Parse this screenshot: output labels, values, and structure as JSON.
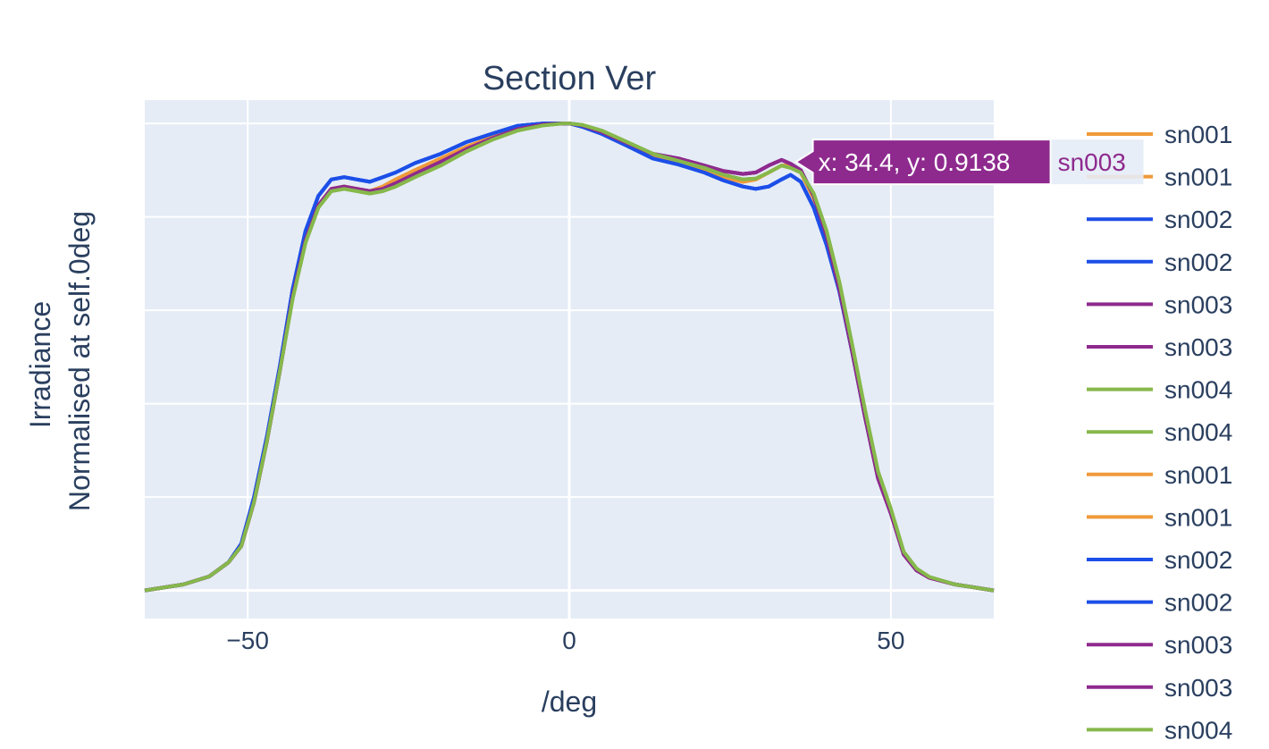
{
  "chart_data": {
    "type": "line",
    "title": "Section Ver",
    "xlabel": "/deg",
    "ylabel_lines": [
      "Irradiance",
      "Normalised at self.0deg"
    ],
    "xlim": [
      -66,
      66
    ],
    "ylim": [
      -0.06,
      1.05
    ],
    "x_ticks": [
      -50,
      0,
      50
    ],
    "x_tick_labels": [
      "−50",
      "0",
      "50"
    ],
    "y_gridlines": [
      0,
      0.2,
      0.4,
      0.6,
      0.8,
      1.0
    ],
    "grid": true,
    "legend_position": "right",
    "x": [
      -66,
      -60,
      -56,
      -53,
      -51,
      -49,
      -47,
      -45,
      -43,
      -41,
      -39,
      -37,
      -35,
      -33,
      -31,
      -29,
      -27,
      -24,
      -20,
      -16,
      -12,
      -8,
      -4,
      -1,
      0,
      2,
      5,
      9,
      13,
      17,
      21,
      24,
      27,
      29,
      31,
      33,
      34.4,
      36,
      38,
      40,
      42,
      44,
      46,
      48,
      50,
      52,
      54,
      56,
      60,
      66
    ],
    "series": [
      {
        "name": "sn001",
        "color": "#EF9A3A",
        "values": [
          0.0,
          0.013,
          0.03,
          0.06,
          0.095,
          0.19,
          0.32,
          0.47,
          0.63,
          0.75,
          0.825,
          0.86,
          0.865,
          0.86,
          0.855,
          0.865,
          0.88,
          0.9,
          0.925,
          0.95,
          0.97,
          0.99,
          0.998,
          1.0,
          1.0,
          0.995,
          0.98,
          0.955,
          0.93,
          0.918,
          0.9,
          0.885,
          0.875,
          0.88,
          0.895,
          0.91,
          0.91,
          0.895,
          0.84,
          0.76,
          0.65,
          0.52,
          0.38,
          0.25,
          0.17,
          0.08,
          0.045,
          0.028,
          0.013,
          0.0
        ]
      },
      {
        "name": "sn001",
        "color": "#EF9A3A",
        "values": [
          0.0,
          0.013,
          0.03,
          0.06,
          0.095,
          0.19,
          0.32,
          0.47,
          0.63,
          0.75,
          0.825,
          0.86,
          0.865,
          0.86,
          0.855,
          0.865,
          0.88,
          0.9,
          0.925,
          0.95,
          0.97,
          0.99,
          0.998,
          1.0,
          1.0,
          0.995,
          0.98,
          0.955,
          0.93,
          0.918,
          0.9,
          0.885,
          0.875,
          0.88,
          0.895,
          0.91,
          0.91,
          0.895,
          0.84,
          0.76,
          0.65,
          0.52,
          0.38,
          0.25,
          0.17,
          0.08,
          0.045,
          0.028,
          0.013,
          0.0
        ]
      },
      {
        "name": "sn002",
        "color": "#1C4FE8",
        "values": [
          0.0,
          0.013,
          0.03,
          0.06,
          0.1,
          0.2,
          0.33,
          0.48,
          0.645,
          0.77,
          0.845,
          0.88,
          0.885,
          0.88,
          0.875,
          0.885,
          0.895,
          0.915,
          0.935,
          0.96,
          0.978,
          0.995,
          1.0,
          1.0,
          1.0,
          0.993,
          0.978,
          0.952,
          0.925,
          0.912,
          0.895,
          0.878,
          0.865,
          0.86,
          0.865,
          0.88,
          0.89,
          0.875,
          0.82,
          0.74,
          0.64,
          0.51,
          0.37,
          0.245,
          0.17,
          0.08,
          0.045,
          0.028,
          0.013,
          0.0
        ]
      },
      {
        "name": "sn002",
        "color": "#1C4FE8",
        "values": [
          0.0,
          0.013,
          0.03,
          0.06,
          0.1,
          0.2,
          0.33,
          0.48,
          0.645,
          0.77,
          0.845,
          0.88,
          0.885,
          0.88,
          0.875,
          0.885,
          0.895,
          0.915,
          0.935,
          0.96,
          0.978,
          0.995,
          1.0,
          1.0,
          1.0,
          0.993,
          0.978,
          0.952,
          0.925,
          0.912,
          0.895,
          0.878,
          0.865,
          0.86,
          0.865,
          0.88,
          0.89,
          0.875,
          0.82,
          0.74,
          0.64,
          0.51,
          0.37,
          0.245,
          0.17,
          0.08,
          0.045,
          0.028,
          0.013,
          0.0
        ]
      },
      {
        "name": "sn003",
        "color": "#8E2A8E",
        "values": [
          0.0,
          0.013,
          0.03,
          0.06,
          0.095,
          0.19,
          0.32,
          0.47,
          0.63,
          0.75,
          0.825,
          0.86,
          0.865,
          0.86,
          0.855,
          0.86,
          0.872,
          0.892,
          0.918,
          0.945,
          0.968,
          0.988,
          0.998,
          1.0,
          1.0,
          0.996,
          0.982,
          0.958,
          0.935,
          0.925,
          0.91,
          0.898,
          0.892,
          0.895,
          0.91,
          0.922,
          0.9138,
          0.9,
          0.845,
          0.76,
          0.645,
          0.51,
          0.37,
          0.24,
          0.165,
          0.077,
          0.043,
          0.027,
          0.013,
          0.0
        ]
      },
      {
        "name": "sn003",
        "color": "#8E2A8E",
        "values": [
          0.0,
          0.013,
          0.03,
          0.06,
          0.095,
          0.19,
          0.32,
          0.47,
          0.63,
          0.75,
          0.825,
          0.86,
          0.865,
          0.86,
          0.855,
          0.86,
          0.872,
          0.892,
          0.918,
          0.945,
          0.968,
          0.988,
          0.998,
          1.0,
          1.0,
          0.996,
          0.982,
          0.958,
          0.935,
          0.925,
          0.91,
          0.898,
          0.892,
          0.895,
          0.91,
          0.922,
          0.9138,
          0.9,
          0.845,
          0.76,
          0.645,
          0.51,
          0.37,
          0.24,
          0.165,
          0.077,
          0.043,
          0.027,
          0.013,
          0.0
        ]
      },
      {
        "name": "sn004",
        "color": "#86B84B",
        "values": [
          0.0,
          0.013,
          0.03,
          0.06,
          0.095,
          0.19,
          0.32,
          0.47,
          0.625,
          0.745,
          0.82,
          0.855,
          0.86,
          0.855,
          0.85,
          0.855,
          0.865,
          0.885,
          0.91,
          0.94,
          0.965,
          0.985,
          0.996,
          1.0,
          1.0,
          0.997,
          0.985,
          0.96,
          0.935,
          0.92,
          0.905,
          0.89,
          0.88,
          0.882,
          0.895,
          0.91,
          0.905,
          0.895,
          0.85,
          0.77,
          0.66,
          0.525,
          0.385,
          0.255,
          0.175,
          0.083,
          0.047,
          0.029,
          0.013,
          0.0
        ]
      },
      {
        "name": "sn004",
        "color": "#86B84B",
        "values": [
          0.0,
          0.013,
          0.03,
          0.06,
          0.095,
          0.19,
          0.32,
          0.47,
          0.625,
          0.745,
          0.82,
          0.855,
          0.86,
          0.855,
          0.85,
          0.855,
          0.865,
          0.885,
          0.91,
          0.94,
          0.965,
          0.985,
          0.996,
          1.0,
          1.0,
          0.997,
          0.985,
          0.96,
          0.935,
          0.92,
          0.905,
          0.89,
          0.88,
          0.882,
          0.895,
          0.91,
          0.905,
          0.895,
          0.85,
          0.77,
          0.66,
          0.525,
          0.385,
          0.255,
          0.175,
          0.083,
          0.047,
          0.029,
          0.013,
          0.0
        ]
      },
      {
        "name": "sn001",
        "color": "#EF9A3A",
        "values": [
          0.0,
          0.013,
          0.03,
          0.06,
          0.095,
          0.19,
          0.32,
          0.47,
          0.63,
          0.75,
          0.825,
          0.86,
          0.865,
          0.86,
          0.855,
          0.865,
          0.88,
          0.9,
          0.925,
          0.95,
          0.97,
          0.99,
          0.998,
          1.0,
          1.0,
          0.995,
          0.98,
          0.955,
          0.93,
          0.918,
          0.9,
          0.885,
          0.875,
          0.88,
          0.895,
          0.91,
          0.91,
          0.895,
          0.84,
          0.76,
          0.65,
          0.52,
          0.38,
          0.25,
          0.17,
          0.08,
          0.045,
          0.028,
          0.013,
          0.0
        ]
      },
      {
        "name": "sn001",
        "color": "#EF9A3A",
        "values": [
          0.0,
          0.013,
          0.03,
          0.06,
          0.095,
          0.19,
          0.32,
          0.47,
          0.63,
          0.75,
          0.825,
          0.86,
          0.865,
          0.86,
          0.855,
          0.865,
          0.88,
          0.9,
          0.925,
          0.95,
          0.97,
          0.99,
          0.998,
          1.0,
          1.0,
          0.995,
          0.98,
          0.955,
          0.93,
          0.918,
          0.9,
          0.885,
          0.875,
          0.88,
          0.895,
          0.91,
          0.91,
          0.895,
          0.84,
          0.76,
          0.65,
          0.52,
          0.38,
          0.25,
          0.17,
          0.08,
          0.045,
          0.028,
          0.013,
          0.0
        ]
      },
      {
        "name": "sn002",
        "color": "#1C4FE8",
        "values": [
          0.0,
          0.013,
          0.03,
          0.06,
          0.1,
          0.2,
          0.33,
          0.48,
          0.645,
          0.77,
          0.845,
          0.88,
          0.885,
          0.88,
          0.875,
          0.885,
          0.895,
          0.915,
          0.935,
          0.96,
          0.978,
          0.995,
          1.0,
          1.0,
          1.0,
          0.993,
          0.978,
          0.952,
          0.925,
          0.912,
          0.895,
          0.878,
          0.865,
          0.86,
          0.865,
          0.88,
          0.89,
          0.875,
          0.82,
          0.74,
          0.64,
          0.51,
          0.37,
          0.245,
          0.17,
          0.08,
          0.045,
          0.028,
          0.013,
          0.0
        ]
      },
      {
        "name": "sn002",
        "color": "#1C4FE8",
        "values": [
          0.0,
          0.013,
          0.03,
          0.06,
          0.1,
          0.2,
          0.33,
          0.48,
          0.645,
          0.77,
          0.845,
          0.88,
          0.885,
          0.88,
          0.875,
          0.885,
          0.895,
          0.915,
          0.935,
          0.96,
          0.978,
          0.995,
          1.0,
          1.0,
          1.0,
          0.993,
          0.978,
          0.952,
          0.925,
          0.912,
          0.895,
          0.878,
          0.865,
          0.86,
          0.865,
          0.88,
          0.89,
          0.875,
          0.82,
          0.74,
          0.64,
          0.51,
          0.37,
          0.245,
          0.17,
          0.08,
          0.045,
          0.028,
          0.013,
          0.0
        ]
      },
      {
        "name": "sn003",
        "color": "#8E2A8E",
        "values": [
          0.0,
          0.013,
          0.03,
          0.06,
          0.095,
          0.19,
          0.32,
          0.47,
          0.63,
          0.75,
          0.825,
          0.86,
          0.865,
          0.86,
          0.855,
          0.86,
          0.872,
          0.892,
          0.918,
          0.945,
          0.968,
          0.988,
          0.998,
          1.0,
          1.0,
          0.996,
          0.982,
          0.958,
          0.935,
          0.925,
          0.91,
          0.898,
          0.892,
          0.895,
          0.91,
          0.922,
          0.9138,
          0.9,
          0.845,
          0.76,
          0.645,
          0.51,
          0.37,
          0.24,
          0.165,
          0.077,
          0.043,
          0.027,
          0.013,
          0.0
        ]
      },
      {
        "name": "sn003",
        "color": "#8E2A8E",
        "values": [
          0.0,
          0.013,
          0.03,
          0.06,
          0.095,
          0.19,
          0.32,
          0.47,
          0.63,
          0.75,
          0.825,
          0.86,
          0.865,
          0.86,
          0.855,
          0.86,
          0.872,
          0.892,
          0.918,
          0.945,
          0.968,
          0.988,
          0.998,
          1.0,
          1.0,
          0.996,
          0.982,
          0.958,
          0.935,
          0.925,
          0.91,
          0.898,
          0.892,
          0.895,
          0.91,
          0.922,
          0.9138,
          0.9,
          0.845,
          0.76,
          0.645,
          0.51,
          0.37,
          0.24,
          0.165,
          0.077,
          0.043,
          0.027,
          0.013,
          0.0
        ]
      },
      {
        "name": "sn004",
        "color": "#86B84B",
        "values": [
          0.0,
          0.013,
          0.03,
          0.06,
          0.095,
          0.19,
          0.32,
          0.47,
          0.625,
          0.745,
          0.82,
          0.855,
          0.86,
          0.855,
          0.85,
          0.855,
          0.865,
          0.885,
          0.91,
          0.94,
          0.965,
          0.985,
          0.996,
          1.0,
          1.0,
          0.997,
          0.985,
          0.96,
          0.935,
          0.92,
          0.905,
          0.89,
          0.88,
          0.882,
          0.895,
          0.91,
          0.905,
          0.895,
          0.85,
          0.77,
          0.66,
          0.525,
          0.385,
          0.255,
          0.175,
          0.083,
          0.047,
          0.029,
          0.013,
          0.0
        ]
      }
    ],
    "legend_entries": [
      {
        "label": "sn001",
        "color": "#EF9A3A"
      },
      {
        "label": "sn001",
        "color": "#EF9A3A"
      },
      {
        "label": "sn002",
        "color": "#1C4FE8"
      },
      {
        "label": "sn002",
        "color": "#1C4FE8"
      },
      {
        "label": "sn003",
        "color": "#8E2A8E"
      },
      {
        "label": "sn003",
        "color": "#8E2A8E"
      },
      {
        "label": "sn004",
        "color": "#86B84B"
      },
      {
        "label": "sn004",
        "color": "#86B84B"
      },
      {
        "label": "sn001",
        "color": "#EF9A3A"
      },
      {
        "label": "sn001",
        "color": "#EF9A3A"
      },
      {
        "label": "sn002",
        "color": "#1C4FE8"
      },
      {
        "label": "sn002",
        "color": "#1C4FE8"
      },
      {
        "label": "sn003",
        "color": "#8E2A8E"
      },
      {
        "label": "sn003",
        "color": "#8E2A8E"
      },
      {
        "label": "sn004",
        "color": "#86B84B"
      }
    ],
    "hover": {
      "x": 34.4,
      "y": 0.9138,
      "text": "x: 34.4, y: 0.9138",
      "series_name": "sn003",
      "color": "#8E2A8E"
    },
    "colors": {
      "plot_background": "#E5ECF6",
      "grid": "#ffffff",
      "text": "#2a3f5f"
    }
  }
}
